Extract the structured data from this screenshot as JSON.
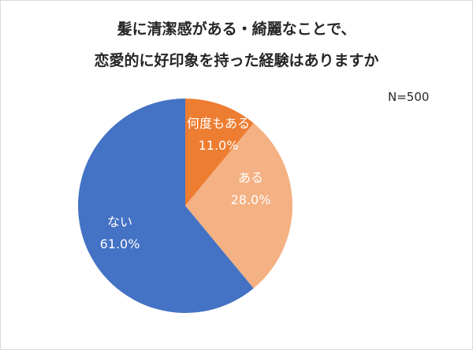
{
  "chart_data": {
    "type": "pie",
    "title": "髪に清潔感がある・綺麗なことで、恋愛的に好印象を持った経験はありますか",
    "title_lines": [
      "髪に清潔感がある・綺麗なことで、",
      "恋愛的に好印象を持った経験はありますか"
    ],
    "annotation": "N=500",
    "categories": [
      "何度もある",
      "ある",
      "ない"
    ],
    "values": [
      11.0,
      28.0,
      61.0
    ],
    "value_labels": [
      "11.0%",
      "28.0%",
      "61.0%"
    ],
    "colors": [
      "#ED7D31",
      "#F4B183",
      "#4472C4"
    ],
    "legend": "none (data labels inside slices)",
    "start_angle": "12 o'clock, clockwise"
  }
}
